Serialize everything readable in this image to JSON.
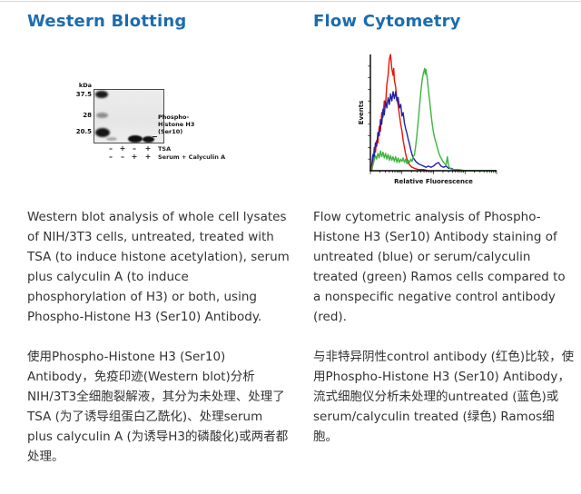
{
  "page": {
    "accent_blue": "#1b6cb0",
    "body_text_color": "#333333"
  },
  "western": {
    "title": "Western Blotting",
    "figure": {
      "unit_label": "kDa",
      "markers": [
        "37.5",
        "28",
        "20.5"
      ],
      "band_label_lines": [
        "Phospho-",
        "Histone H3",
        "(Ser10)"
      ],
      "rows": [
        {
          "label": "TSA",
          "signs": [
            "–",
            "+",
            "–",
            "+"
          ]
        },
        {
          "label": "Serum + Calyculin A",
          "signs": [
            "–",
            "–",
            "+",
            "+"
          ]
        }
      ]
    },
    "paragraph_en": "Western blot analysis of whole cell lysates of NIH/3T3 cells, untreated, treated with TSA (to induce histone acetylation), serum plus calyculin A (to induce phosphorylation of H3) or both, using Phospho-Histone H3 (Ser10) Antibody.",
    "paragraph_zh": "使用Phospho-Histone H3 (Ser10) Antibody，免疫印迹(Western blot)分析NIH/3T3全细胞裂解液，其分为未处理、处理了TSA (为了诱导组蛋白乙酰化)、处理serum plus calyculin A (为诱导H3的磷酸化)或两者都处理。"
  },
  "flow": {
    "title": "Flow Cytometry",
    "paragraph_en": "Flow cytometric analysis of Phospho-Histone H3 (Ser10) Antibody staining of untreated (blue) or serum/calyculin treated (green) Ramos cells compared to a nonspecific negative control antibody (red).",
    "paragraph_zh": "与非特异阴性control antibody (红色)比较，使用Phospho-Histone H3 (Ser10) Antibody，流式细胞仪分析未处理的untreated (蓝色)或serum/calyculin treated (绿色) Ramos细胞。"
  },
  "chart_data": {
    "type": "line",
    "title": "",
    "xlabel": "Relative Fluorescence",
    "ylabel": "Events",
    "x_axis": "log-style fluorescence axis, unlabeled ticks",
    "y_axis": "event counts, unlabeled ticks",
    "xlim_percent": [
      0,
      100
    ],
    "ylim_percent": [
      0,
      100
    ],
    "grid": false,
    "legend": "none (colors described in caption)",
    "series": [
      {
        "name": "nonspecific negative control antibody (red)",
        "color": "#ee1200",
        "points": [
          [
            1,
            0
          ],
          [
            2,
            6
          ],
          [
            3,
            20
          ],
          [
            4,
            16
          ],
          [
            5,
            26
          ],
          [
            6,
            24
          ],
          [
            7,
            38
          ],
          [
            8,
            34
          ],
          [
            9,
            50
          ],
          [
            10,
            46
          ],
          [
            11,
            60
          ],
          [
            12,
            57
          ],
          [
            13,
            74
          ],
          [
            14,
            82
          ],
          [
            15,
            96
          ],
          [
            16,
            100
          ],
          [
            17,
            88
          ],
          [
            18,
            82
          ],
          [
            18.5,
            88
          ],
          [
            19,
            78
          ],
          [
            20,
            72
          ],
          [
            21,
            62
          ],
          [
            22,
            56
          ],
          [
            23,
            48
          ],
          [
            24,
            40
          ],
          [
            25,
            34
          ],
          [
            26,
            26
          ],
          [
            27,
            20
          ],
          [
            28,
            14
          ],
          [
            29,
            10
          ],
          [
            30,
            7
          ],
          [
            31,
            5
          ],
          [
            32,
            4
          ],
          [
            33,
            3
          ],
          [
            35,
            2
          ],
          [
            38,
            1
          ],
          [
            42,
            1
          ],
          [
            46,
            0
          ]
        ]
      },
      {
        "name": "untreated Ramos cells (blue)",
        "color": "#2121a6",
        "points": [
          [
            0,
            0
          ],
          [
            1,
            4
          ],
          [
            2,
            14
          ],
          [
            3,
            12
          ],
          [
            4,
            24
          ],
          [
            5,
            21
          ],
          [
            6,
            33
          ],
          [
            7,
            30
          ],
          [
            8,
            44
          ],
          [
            9,
            40
          ],
          [
            10,
            53
          ],
          [
            11,
            48
          ],
          [
            12,
            60
          ],
          [
            13,
            54
          ],
          [
            14,
            63
          ],
          [
            15,
            57
          ],
          [
            16,
            66
          ],
          [
            17,
            60
          ],
          [
            18,
            68
          ],
          [
            19,
            62
          ],
          [
            20,
            68
          ],
          [
            21,
            60
          ],
          [
            22,
            63
          ],
          [
            23,
            54
          ],
          [
            24,
            57
          ],
          [
            25,
            47
          ],
          [
            26,
            50
          ],
          [
            27,
            41
          ],
          [
            28,
            36
          ],
          [
            29,
            32
          ],
          [
            30,
            27
          ],
          [
            31,
            23
          ],
          [
            32,
            18
          ],
          [
            33,
            14
          ],
          [
            34,
            11
          ],
          [
            36,
            8
          ],
          [
            38,
            6
          ],
          [
            40,
            5
          ],
          [
            42,
            4
          ],
          [
            44,
            3
          ],
          [
            46,
            4
          ],
          [
            48,
            3
          ],
          [
            50,
            4
          ],
          [
            52,
            6
          ],
          [
            54,
            7
          ],
          [
            56,
            4
          ],
          [
            58,
            3
          ],
          [
            60,
            4
          ],
          [
            62,
            2
          ],
          [
            64,
            2
          ],
          [
            66,
            1
          ],
          [
            68,
            1
          ],
          [
            70,
            0
          ]
        ]
      },
      {
        "name": "serum/calyculin treated Ramos cells (green)",
        "color": "#3eb53e",
        "points": [
          [
            0,
            0
          ],
          [
            1,
            2
          ],
          [
            2,
            5
          ],
          [
            3,
            9
          ],
          [
            4,
            13
          ],
          [
            5,
            10
          ],
          [
            6,
            15
          ],
          [
            7,
            11
          ],
          [
            8,
            17
          ],
          [
            9,
            12
          ],
          [
            10,
            16
          ],
          [
            11,
            11
          ],
          [
            12,
            15
          ],
          [
            13,
            10
          ],
          [
            14,
            14
          ],
          [
            15,
            9
          ],
          [
            16,
            13
          ],
          [
            17,
            9
          ],
          [
            18,
            12
          ],
          [
            19,
            8
          ],
          [
            20,
            12
          ],
          [
            21,
            7
          ],
          [
            22,
            11
          ],
          [
            23,
            7
          ],
          [
            24,
            10
          ],
          [
            25,
            8
          ],
          [
            26,
            11
          ],
          [
            27,
            7
          ],
          [
            28,
            10
          ],
          [
            29,
            6
          ],
          [
            30,
            9
          ],
          [
            31,
            7
          ],
          [
            32,
            10
          ],
          [
            33,
            8
          ],
          [
            34,
            12
          ],
          [
            35,
            14
          ],
          [
            36,
            22
          ],
          [
            37,
            32
          ],
          [
            38,
            44
          ],
          [
            39,
            56
          ],
          [
            40,
            68
          ],
          [
            41,
            78
          ],
          [
            42,
            84
          ],
          [
            43,
            88
          ],
          [
            43.5,
            83
          ],
          [
            44,
            87
          ],
          [
            45,
            80
          ],
          [
            46,
            70
          ],
          [
            47,
            60
          ],
          [
            48,
            50
          ],
          [
            49,
            40
          ],
          [
            50,
            33
          ],
          [
            51,
            28
          ],
          [
            52,
            24
          ],
          [
            53,
            20
          ],
          [
            54,
            16
          ],
          [
            55,
            13
          ],
          [
            56,
            11
          ],
          [
            57,
            9
          ],
          [
            58,
            7
          ],
          [
            59,
            6
          ],
          [
            60,
            5
          ],
          [
            61,
            12
          ],
          [
            62,
            4
          ],
          [
            63,
            2
          ],
          [
            65,
            1
          ],
          [
            70,
            1
          ],
          [
            75,
            0
          ],
          [
            100,
            0
          ]
        ]
      }
    ]
  }
}
